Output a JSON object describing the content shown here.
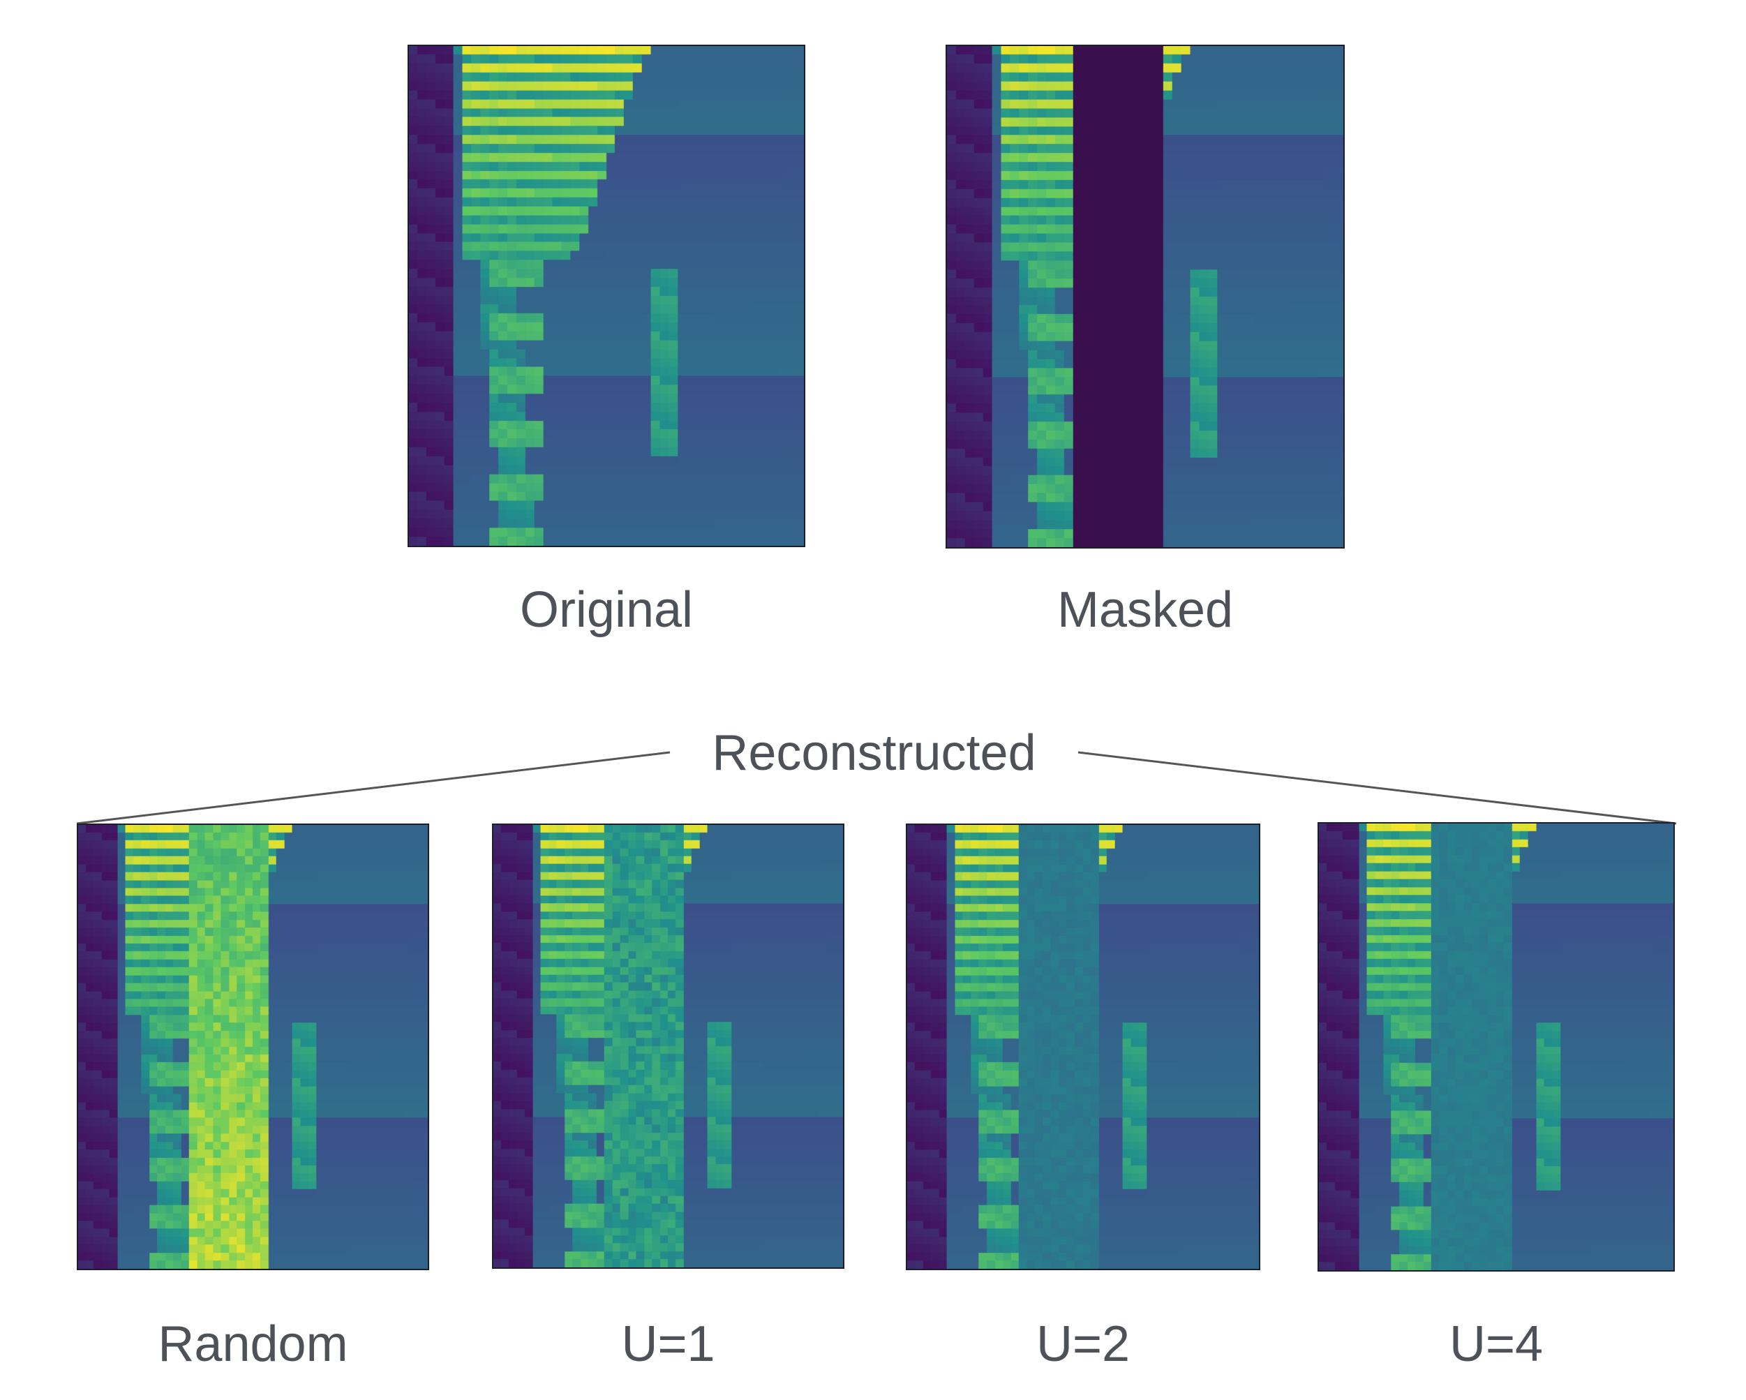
{
  "figure": {
    "panels": [
      {
        "id": "original",
        "caption": "Original",
        "variant": "original"
      },
      {
        "id": "masked",
        "caption": "Masked",
        "variant": "masked"
      },
      {
        "id": "random",
        "caption": "Random",
        "variant": "random"
      },
      {
        "id": "u1",
        "caption": "U=1",
        "variant": "u1"
      },
      {
        "id": "u2",
        "caption": "U=2",
        "variant": "u2"
      },
      {
        "id": "u4",
        "caption": "U=4",
        "variant": "u4"
      }
    ],
    "group_label": "Reconstructed",
    "colormap": [
      "#440154",
      "#3b528b",
      "#21918c",
      "#5ec962",
      "#fde725"
    ],
    "mask_color": "#3a0f4e",
    "caption_color": "#4d5258",
    "frame_color": "#1b1f2a"
  }
}
